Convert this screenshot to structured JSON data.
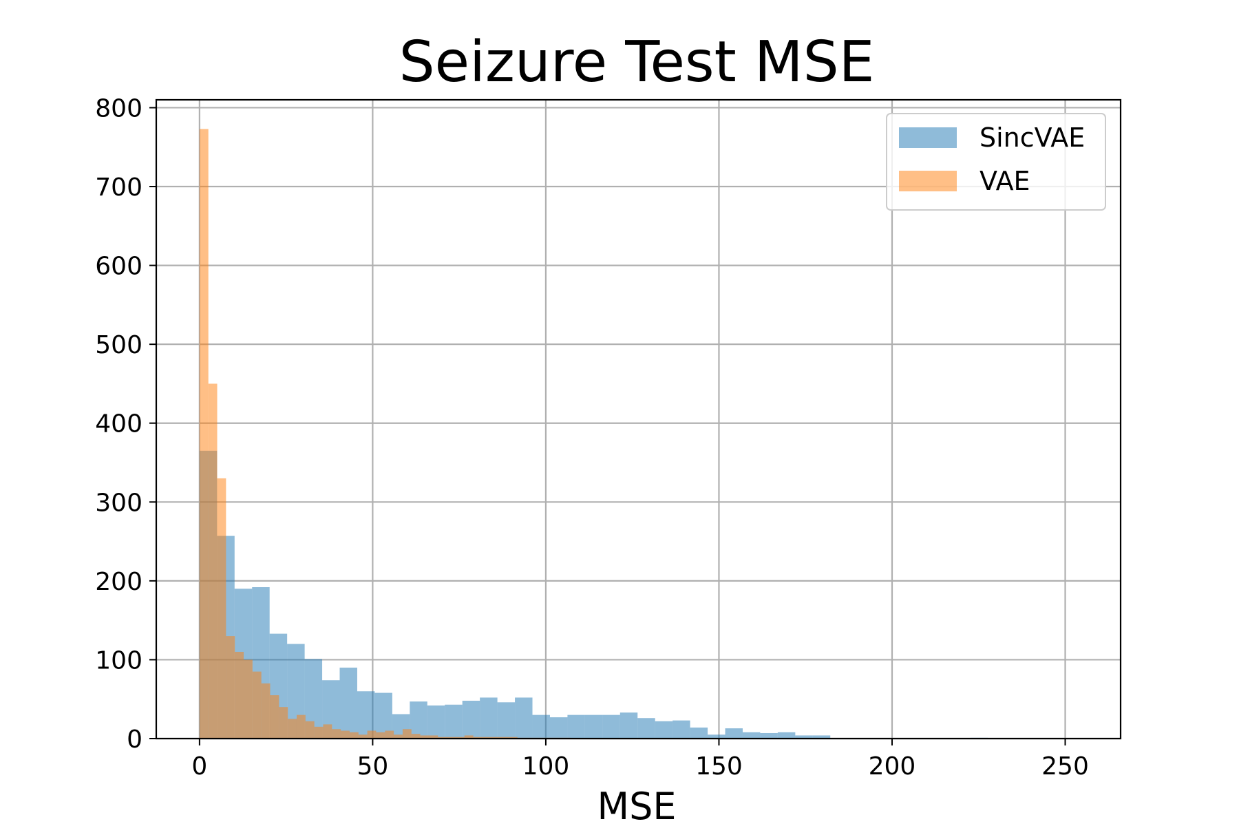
{
  "chart_data": {
    "type": "bar",
    "title": "Seizure Test MSE",
    "xlabel": "MSE",
    "ylabel": "",
    "xlim": [
      -12.5,
      266
    ],
    "ylim": [
      0,
      810
    ],
    "xticks": [
      0,
      50,
      100,
      150,
      200,
      250
    ],
    "yticks": [
      0,
      100,
      200,
      300,
      400,
      500,
      600,
      700,
      800
    ],
    "grid": true,
    "legend_position": "top-right",
    "bin_width_sincvae": 5.06,
    "bin_width_vae": 2.55,
    "series": [
      {
        "name": "SincVAE",
        "color": "#1f77b4",
        "alpha": 0.5,
        "bin_start": 0,
        "values": [
          365,
          257,
          190,
          192,
          133,
          120,
          101,
          74,
          90,
          60,
          58,
          31,
          47,
          42,
          43,
          48,
          52,
          46,
          52,
          30,
          27,
          30,
          30,
          30,
          33,
          26,
          22,
          23,
          14,
          5,
          13,
          8,
          7,
          8,
          4,
          4,
          0,
          0,
          0,
          0,
          0,
          0,
          0,
          0,
          1,
          0,
          0,
          0,
          0,
          0
        ]
      },
      {
        "name": "VAE",
        "color": "#ff7f0e",
        "alpha": 0.5,
        "bin_start": 0,
        "values": [
          773,
          450,
          330,
          130,
          110,
          100,
          85,
          70,
          55,
          40,
          25,
          30,
          22,
          15,
          18,
          12,
          10,
          8,
          5,
          10,
          8,
          10,
          5,
          12,
          6,
          4,
          4,
          2,
          2,
          2,
          4,
          2,
          2,
          2,
          2,
          2,
          1,
          1,
          1,
          1,
          1,
          1,
          0,
          0,
          0,
          0,
          0,
          0,
          0,
          0
        ]
      }
    ]
  }
}
